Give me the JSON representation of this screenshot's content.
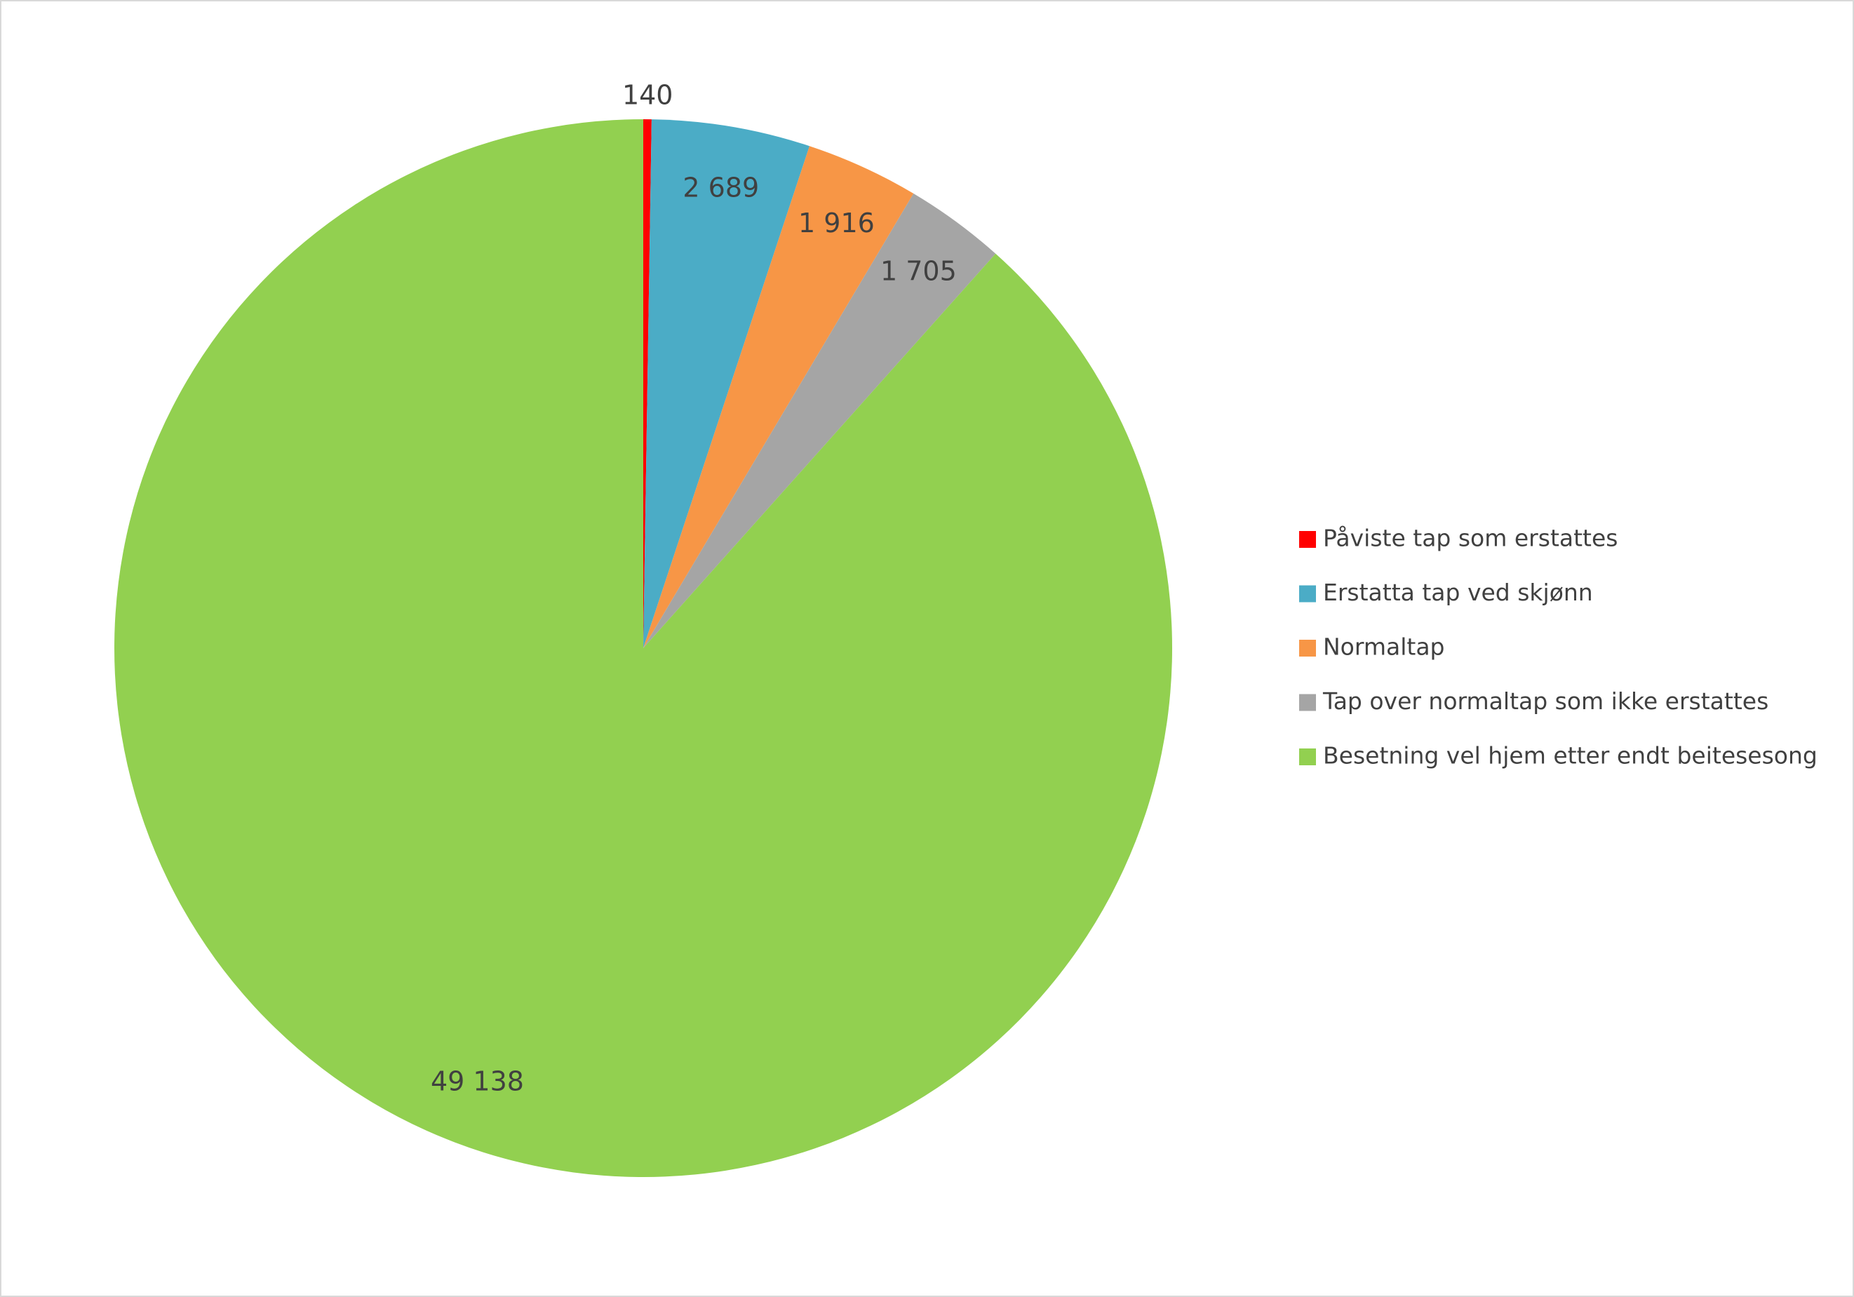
{
  "chart_data": {
    "type": "pie",
    "categories": [
      "Påviste tap som erstattes",
      "Erstatta tap ved skjønn",
      "Normaltap",
      "Tap over normaltap som ikke erstattes",
      "Besetning vel hjem etter endt beitesesong"
    ],
    "values": [
      140,
      2689,
      1916,
      1705,
      49138
    ],
    "value_labels": [
      "140",
      "2 689",
      "1 916",
      "1 705",
      "49 138"
    ],
    "colors": [
      "#ff0000",
      "#4bacc6",
      "#f79646",
      "#a5a5a5",
      "#92d050"
    ],
    "legend": "right"
  }
}
